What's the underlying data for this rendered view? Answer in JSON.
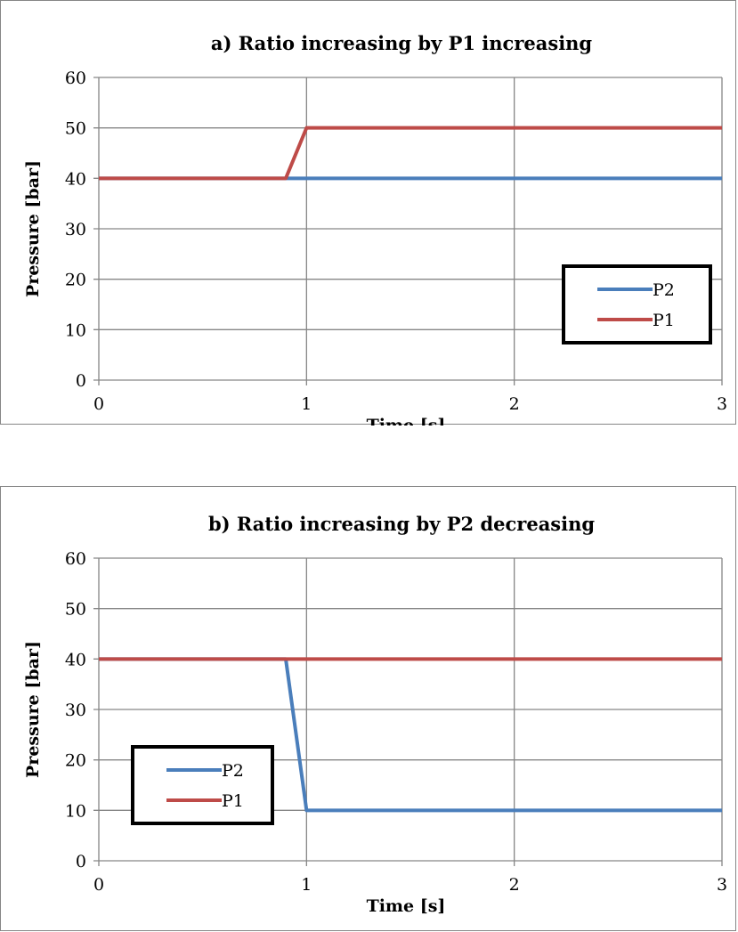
{
  "chart_data": [
    {
      "type": "line",
      "title": "a) Ratio increasing by P1 increasing",
      "xlabel": "Time [s]",
      "ylabel": "Pressure [bar]",
      "xlim": [
        0,
        3
      ],
      "ylim": [
        0,
        60
      ],
      "xticks": [
        "0",
        "1",
        "2",
        "3"
      ],
      "yticks": [
        "0",
        "10",
        "20",
        "30",
        "40",
        "50",
        "60"
      ],
      "grid": "major gridlines on both axes",
      "legend": "bottom-right",
      "series": [
        {
          "name": "P2",
          "color": "#4a7ebb",
          "x": [
            0,
            3
          ],
          "y": [
            40,
            40
          ]
        },
        {
          "name": "P1",
          "color": "#be4b48",
          "x": [
            0,
            0.9,
            1,
            3
          ],
          "y": [
            40,
            40,
            50,
            50
          ]
        }
      ]
    },
    {
      "type": "line",
      "title": "b) Ratio increasing by P2 decreasing",
      "xlabel": "Time [s]",
      "ylabel": "Pressure [bar]",
      "xlim": [
        0,
        3
      ],
      "ylim": [
        0,
        60
      ],
      "xticks": [
        "0",
        "1",
        "2",
        "3"
      ],
      "yticks": [
        "0",
        "10",
        "20",
        "30",
        "40",
        "50",
        "60"
      ],
      "grid": "major gridlines on both axes",
      "legend": "bottom-left",
      "series": [
        {
          "name": "P2",
          "color": "#4a7ebb",
          "x": [
            0,
            0.9,
            1,
            3
          ],
          "y": [
            40,
            40,
            10,
            10
          ]
        },
        {
          "name": "P1",
          "color": "#be4b48",
          "x": [
            0,
            3
          ],
          "y": [
            40,
            40
          ]
        }
      ]
    }
  ]
}
